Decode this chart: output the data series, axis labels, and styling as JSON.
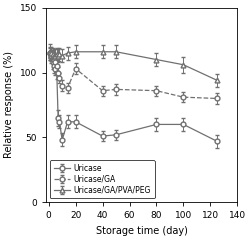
{
  "title": "",
  "xlabel": "Storage time (day)",
  "ylabel": "Relative response (%)",
  "xlim": [
    -2,
    140
  ],
  "ylim": [
    0,
    150
  ],
  "xticks": [
    0,
    20,
    40,
    60,
    80,
    100,
    120,
    140
  ],
  "yticks": [
    0,
    50,
    100,
    150
  ],
  "uricase_x": [
    1,
    2,
    3,
    4,
    5,
    6,
    7,
    8,
    10,
    14,
    20,
    40,
    50,
    80,
    100,
    125
  ],
  "uricase_y": [
    115,
    112,
    108,
    105,
    103,
    100,
    65,
    62,
    48,
    62,
    62,
    51,
    52,
    60,
    60,
    47
  ],
  "uricase_yerr": [
    5,
    5,
    5,
    5,
    5,
    5,
    6,
    5,
    5,
    5,
    5,
    4,
    4,
    5,
    5,
    5
  ],
  "ga_x": [
    1,
    2,
    3,
    4,
    5,
    6,
    7,
    8,
    10,
    14,
    20,
    40,
    50,
    80,
    100,
    125
  ],
  "ga_y": [
    115,
    113,
    112,
    110,
    108,
    105,
    100,
    96,
    90,
    88,
    103,
    86,
    87,
    86,
    81,
    80
  ],
  "ga_yerr": [
    4,
    4,
    4,
    4,
    4,
    4,
    4,
    4,
    4,
    4,
    4,
    4,
    4,
    4,
    4,
    4
  ],
  "pvapeg_x": [
    1,
    2,
    3,
    4,
    5,
    6,
    7,
    8,
    10,
    14,
    20,
    40,
    50,
    80,
    100,
    125
  ],
  "pvapeg_y": [
    116,
    115,
    114,
    113,
    113,
    114,
    113,
    114,
    113,
    115,
    116,
    116,
    116,
    110,
    106,
    94
  ],
  "pvapeg_yerr": [
    6,
    5,
    5,
    5,
    5,
    5,
    5,
    5,
    5,
    5,
    5,
    5,
    5,
    5,
    6,
    5
  ],
  "color": "#707070",
  "legend_labels": [
    "Uricase",
    "Uricase/GA",
    "Uricase/GA/PVA/PEG"
  ]
}
